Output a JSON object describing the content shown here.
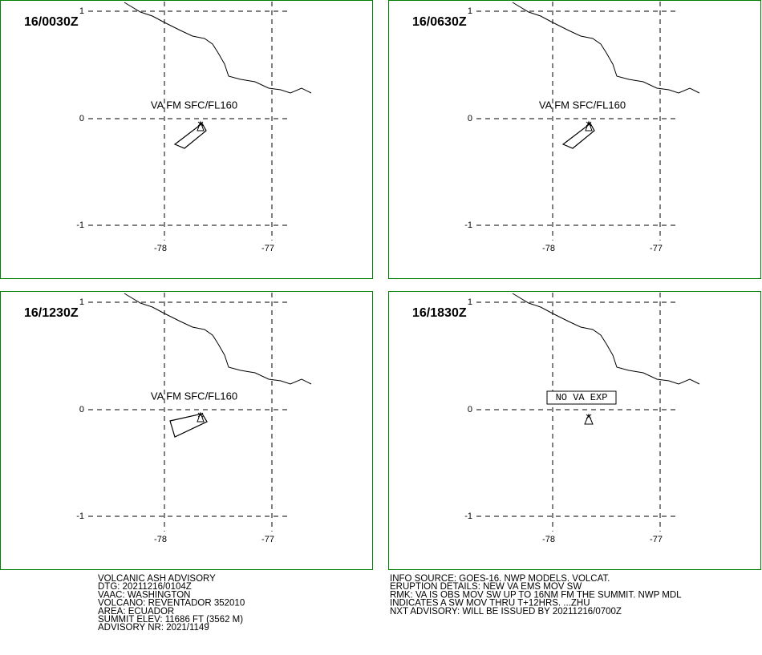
{
  "panels": [
    {
      "time": "16/0030Z",
      "label": "VA FM SFC/FL160"
    },
    {
      "time": "16/0630Z",
      "label": "VA FM SFC/FL160"
    },
    {
      "time": "16/1230Z",
      "label": "VA FM SFC/FL160"
    },
    {
      "time": "16/1830Z",
      "label": "NO VA EXP"
    }
  ],
  "grid": {
    "lat_labels": [
      "1",
      "0",
      "-1"
    ],
    "lon_labels": [
      "-78",
      "-77"
    ]
  },
  "advisory": {
    "left": [
      "VOLCANIC ASH ADVISORY",
      "DTG: 20211216/0104Z",
      "VAAC: WASHINGTON",
      "VOLCANO: REVENTADOR 352010",
      "AREA: ECUADOR",
      "SUMMIT ELEV: 11686 FT (3562 M)",
      "ADVISORY NR: 2021/1149"
    ],
    "right": [
      "INFO SOURCE: GOES-16. NWP MODELS. VOLCAT.",
      "ERUPTION DETAILS: NEW VA EMS MOV SW",
      "RMK: VA IS OBS MOV SW UP TO 16NM FM THE SUMMIT. NWP MDL",
      "INDICATES A SW MOV THRU T+12HRS. ...ZHU",
      "NXT ADVISORY: WILL BE ISSUED BY 20211216/0700Z"
    ]
  }
}
